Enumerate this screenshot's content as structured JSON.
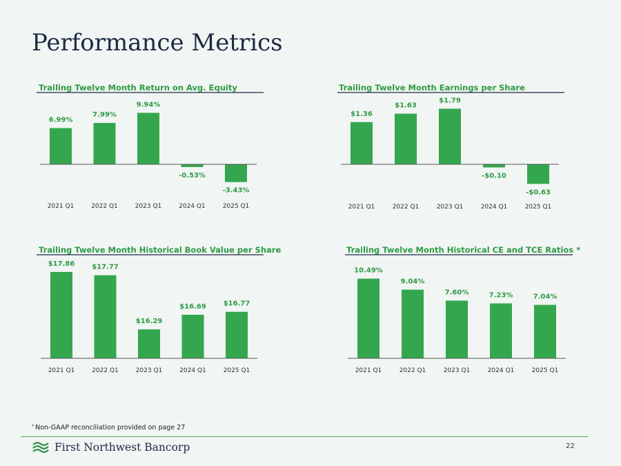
{
  "page": {
    "title": "Performance Metrics",
    "footnote_marker": "*",
    "footnote": "Non-GAAP reconciliation provided on page 27",
    "brand": "First Northwest Bancorp",
    "page_number": "22",
    "colors": {
      "bar": "#34a74e",
      "label": "#2e9a45",
      "title": "#1b2a41"
    }
  },
  "chart_data": [
    {
      "type": "bar",
      "title": "Trailing Twelve Month Return on Avg. Equity",
      "categories": [
        "2021 Q1",
        "2022 Q1",
        "2023 Q1",
        "2024 Q1",
        "2025 Q1"
      ],
      "values": [
        6.99,
        7.99,
        9.94,
        -0.53,
        -3.43
      ],
      "labels": [
        "6.99%",
        "7.99%",
        "9.94%",
        "-0.53%",
        "-3.43%"
      ],
      "unit": "%"
    },
    {
      "type": "bar",
      "title": "Trailing Twelve Month Earnings per Share",
      "categories": [
        "2021 Q1",
        "2022 Q1",
        "2023 Q1",
        "2024 Q1",
        "2025 Q1"
      ],
      "values": [
        1.36,
        1.63,
        1.79,
        -0.1,
        -0.63
      ],
      "labels": [
        "$1.36",
        "$1.63",
        "$1.79",
        "-$0.10",
        "-$0.63"
      ],
      "unit": "$"
    },
    {
      "type": "bar",
      "title": "Trailing Twelve Month Historical Book Value per Share",
      "categories": [
        "2021 Q1",
        "2022 Q1",
        "2023 Q1",
        "2024 Q1",
        "2025 Q1"
      ],
      "values": [
        17.86,
        17.77,
        16.29,
        16.69,
        16.77
      ],
      "labels": [
        "$17.86",
        "$17.77",
        "$16.29",
        "$16.69",
        "$16.77"
      ],
      "unit": "$",
      "ylim": [
        15.5,
        18.0
      ]
    },
    {
      "type": "bar",
      "title": "Trailing Twelve Month Historical CE and TCE Ratios *",
      "categories": [
        "2021 Q1",
        "2022 Q1",
        "2023 Q1",
        "2024 Q1",
        "2025 Q1"
      ],
      "values": [
        10.49,
        9.04,
        7.6,
        7.23,
        7.04
      ],
      "labels": [
        "10.49%",
        "9.04%",
        "7.60%",
        "7.23%",
        "7.04%"
      ],
      "unit": "%"
    }
  ]
}
